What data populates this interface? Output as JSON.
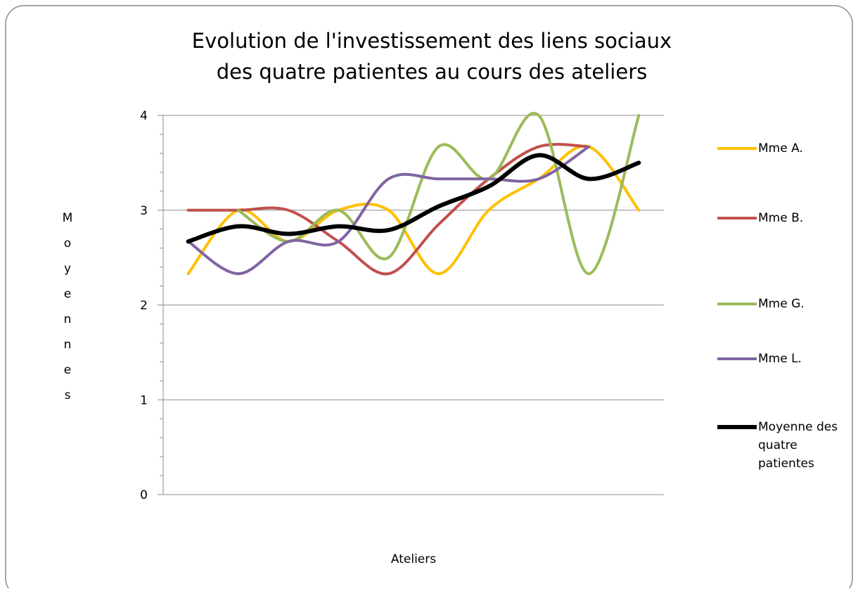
{
  "chart_data": {
    "type": "line",
    "title": [
      "Evolution de l'investissement des liens sociaux",
      "des quatre patientes au cours des ateliers"
    ],
    "x_label": "Ateliers",
    "y_label": "Moyennes",
    "categories": [
      null,
      null,
      null,
      null,
      null,
      null,
      null,
      null,
      null,
      null
    ],
    "series": [
      {
        "name": "Mme A.",
        "color": "#ffc000",
        "width": 4,
        "values": [
          2.33,
          3,
          2.67,
          3,
          3,
          2.33,
          3,
          3.33,
          3.67,
          3
        ]
      },
      {
        "name": "Mme B.",
        "color": "#c0504d",
        "width": 4,
        "values": [
          3,
          3,
          3,
          2.67,
          2.33,
          2.85,
          3.33,
          3.67,
          3.67,
          null
        ]
      },
      {
        "name": "Mme G.",
        "color": "#9bbb59",
        "width": 4,
        "values": [
          null,
          3,
          2.67,
          3,
          2.5,
          3.67,
          3.33,
          4,
          2.33,
          4
        ]
      },
      {
        "name": "Mme L.",
        "color": "#8064a2",
        "width": 4,
        "values": [
          2.67,
          2.33,
          2.67,
          2.67,
          3.33,
          3.33,
          3.33,
          3.33,
          3.67,
          null
        ]
      },
      {
        "name": "Moyenne des quatre patientes",
        "color": "#000000",
        "width": 6,
        "values": [
          2.67,
          2.83,
          2.75,
          2.83,
          2.79,
          3.04,
          3.25,
          3.58,
          3.33,
          3.5
        ]
      }
    ],
    "ylim": [
      0,
      4
    ],
    "yticks": [
      0,
      1,
      2,
      3,
      4
    ],
    "grid": true,
    "smooth": true,
    "legend": "right"
  }
}
